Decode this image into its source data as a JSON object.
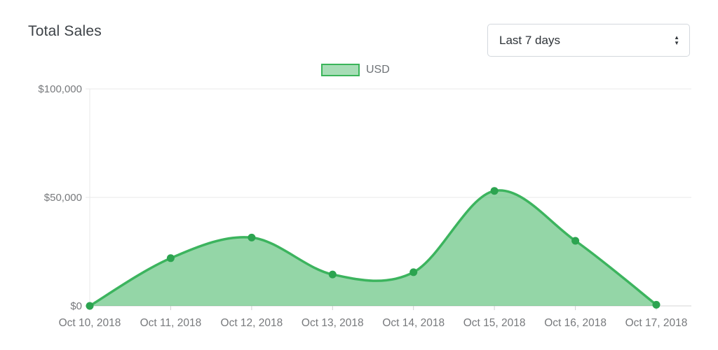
{
  "header": {
    "title": "Total Sales",
    "range_select": {
      "value": "Last 7 days",
      "options": [
        "Last 7 days"
      ]
    }
  },
  "legend": {
    "label": "USD"
  },
  "chart_data": {
    "type": "area",
    "title": "Total Sales",
    "categories": [
      "Oct 10, 2018",
      "Oct 11, 2018",
      "Oct 12, 2018",
      "Oct 13, 2018",
      "Oct 14, 2018",
      "Oct 15, 2018",
      "Oct 16, 2018",
      "Oct 17, 2018"
    ],
    "series": [
      {
        "name": "USD",
        "values": [
          0,
          22000,
          31500,
          14500,
          15500,
          53000,
          30000,
          500
        ]
      }
    ],
    "xlabel": "",
    "ylabel": "",
    "ylim": [
      0,
      100000
    ],
    "y_ticks": [
      {
        "value": 100000,
        "label": "$100,000"
      },
      {
        "value": 50000,
        "label": "$50,000"
      },
      {
        "value": 0,
        "label": "$0"
      }
    ],
    "legend_position": "top",
    "grid": "horizontal",
    "line_style": "smooth",
    "colors": {
      "line": "#3cb45e",
      "point": "#2ca450",
      "fill": "#3cb45e",
      "fill_opacity": 0.55,
      "grid_line": "#e8e8e8",
      "axis_line": "#d4d4d4",
      "tick_mark": "#cfcfcf",
      "axis_text": "#77797c"
    }
  }
}
